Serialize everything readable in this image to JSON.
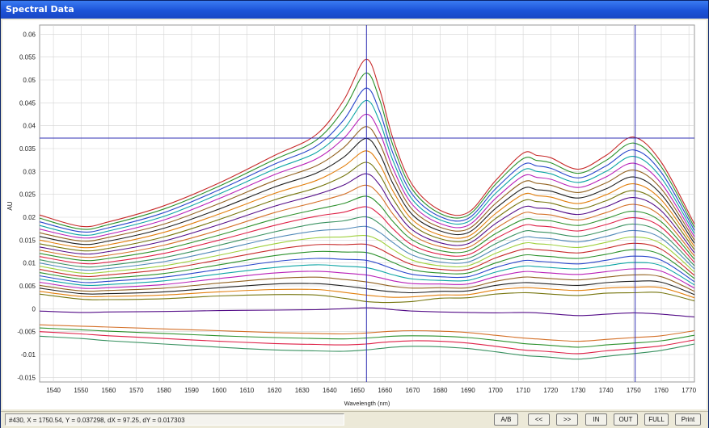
{
  "window": {
    "title": "Spectral Data"
  },
  "status": {
    "readout": "#430,  X = 1750.54,  Y = 0.037298,  dX = 97.25,  dY = 0.017303"
  },
  "buttons": [
    {
      "label": "A/B"
    },
    {
      "label": "<<"
    },
    {
      "label": ">>"
    },
    {
      "label": "IN"
    },
    {
      "label": "OUT"
    },
    {
      "label": "FULL"
    },
    {
      "label": "Print"
    }
  ],
  "chart_data": {
    "type": "line",
    "title": "",
    "xlabel": "Wavelength (nm)",
    "ylabel": "AU",
    "xlim": [
      1535,
      1772
    ],
    "ylim": [
      -0.016,
      0.062
    ],
    "x_ticks": [
      1540,
      1550,
      1560,
      1570,
      1580,
      1590,
      1600,
      1610,
      1620,
      1630,
      1640,
      1650,
      1660,
      1670,
      1680,
      1690,
      1700,
      1710,
      1720,
      1730,
      1740,
      1750,
      1760,
      1770
    ],
    "y_ticks": [
      -0.015,
      -0.01,
      -0.005,
      0,
      0.005,
      0.01,
      0.015,
      0.02,
      0.025,
      0.03,
      0.035,
      0.04,
      0.045,
      0.05,
      0.055,
      0.06
    ],
    "y_tick_labels": [
      "-0.015",
      "-0.01",
      "-0.005",
      "0",
      "0.005",
      "0.01",
      "0.015",
      "0.02",
      "0.025",
      "0.03",
      "0.035",
      "0.04",
      "0.045",
      "0.05",
      "0.055",
      "0.06"
    ],
    "grid": true,
    "cursors": {
      "vertical": [
        1653.3,
        1750.54
      ],
      "horizontal": 0.037298
    },
    "profile_x": [
      1535,
      1550,
      1560,
      1580,
      1600,
      1620,
      1635,
      1645,
      1653,
      1658,
      1663,
      1670,
      1680,
      1690,
      1700,
      1710,
      1715,
      1720,
      1730,
      1740,
      1750,
      1760,
      1772
    ],
    "series": [
      {
        "values": [
          0.0205,
          0.018,
          0.019,
          0.0225,
          0.0275,
          0.0335,
          0.038,
          0.0455,
          0.0545,
          0.048,
          0.037,
          0.027,
          0.0215,
          0.021,
          0.028,
          0.034,
          0.0335,
          0.033,
          0.0305,
          0.0335,
          0.0375,
          0.032,
          0.0185
        ]
      },
      {
        "values": [
          0.0198,
          0.0174,
          0.0184,
          0.0218,
          0.0268,
          0.0326,
          0.0368,
          0.0435,
          0.0515,
          0.0458,
          0.0355,
          0.026,
          0.0208,
          0.0204,
          0.0272,
          0.0328,
          0.0324,
          0.0319,
          0.0296,
          0.0324,
          0.0362,
          0.031,
          0.0178
        ]
      },
      {
        "values": [
          0.019,
          0.0168,
          0.0177,
          0.021,
          0.026,
          0.0316,
          0.0355,
          0.0412,
          0.0482,
          0.0432,
          0.0338,
          0.0249,
          0.0201,
          0.0197,
          0.0262,
          0.0315,
          0.0312,
          0.0307,
          0.0286,
          0.0312,
          0.0347,
          0.0298,
          0.0171
        ]
      },
      {
        "values": [
          0.0182,
          0.0161,
          0.017,
          0.0202,
          0.0251,
          0.0305,
          0.0341,
          0.0392,
          0.0455,
          0.041,
          0.0322,
          0.0238,
          0.0194,
          0.019,
          0.0252,
          0.0303,
          0.03,
          0.0295,
          0.0276,
          0.03,
          0.0333,
          0.0286,
          0.0164
        ]
      },
      {
        "values": [
          0.0174,
          0.0155,
          0.0163,
          0.0194,
          0.0241,
          0.0293,
          0.0327,
          0.0372,
          0.0425,
          0.0386,
          0.0305,
          0.0227,
          0.0186,
          0.0182,
          0.0241,
          0.029,
          0.0287,
          0.0283,
          0.0265,
          0.0288,
          0.0318,
          0.0274,
          0.0157
        ]
      },
      {
        "values": [
          0.0166,
          0.0148,
          0.0156,
          0.0185,
          0.023,
          0.028,
          0.0312,
          0.0352,
          0.0398,
          0.0362,
          0.0289,
          0.0216,
          0.0178,
          0.0174,
          0.023,
          0.0277,
          0.0274,
          0.027,
          0.0254,
          0.0275,
          0.0303,
          0.0262,
          0.015
        ]
      },
      {
        "values": [
          0.0158,
          0.0141,
          0.0148,
          0.0176,
          0.0218,
          0.0266,
          0.0296,
          0.0331,
          0.0372,
          0.0339,
          0.0272,
          0.0205,
          0.017,
          0.0166,
          0.0219,
          0.0263,
          0.026,
          0.0257,
          0.0242,
          0.0262,
          0.0288,
          0.025,
          0.0143
        ]
      },
      {
        "values": [
          0.015,
          0.0134,
          0.014,
          0.0167,
          0.0207,
          0.0252,
          0.028,
          0.0311,
          0.0345,
          0.0316,
          0.0256,
          0.0194,
          0.0161,
          0.0158,
          0.0208,
          0.025,
          0.0247,
          0.0244,
          0.023,
          0.0249,
          0.0273,
          0.0238,
          0.0136
        ]
      },
      {
        "values": [
          0.0142,
          0.0127,
          0.0132,
          0.0157,
          0.0195,
          0.0238,
          0.0264,
          0.029,
          0.032,
          0.0293,
          0.0239,
          0.0183,
          0.0153,
          0.015,
          0.0197,
          0.0236,
          0.0234,
          0.0231,
          0.0218,
          0.0236,
          0.0258,
          0.0226,
          0.0129
        ]
      },
      {
        "values": [
          0.0135,
          0.012,
          0.0125,
          0.0148,
          0.0184,
          0.0224,
          0.0249,
          0.027,
          0.0295,
          0.0271,
          0.0222,
          0.0172,
          0.0144,
          0.0142,
          0.0186,
          0.0222,
          0.022,
          0.0218,
          0.0206,
          0.0223,
          0.0243,
          0.0214,
          0.0122
        ]
      },
      {
        "values": [
          0.0128,
          0.0113,
          0.0117,
          0.0139,
          0.0172,
          0.021,
          0.0233,
          0.025,
          0.027,
          0.0249,
          0.0206,
          0.0161,
          0.0136,
          0.0134,
          0.0175,
          0.0209,
          0.0207,
          0.0205,
          0.0194,
          0.021,
          0.0228,
          0.0202,
          0.0115
        ]
      },
      {
        "values": [
          0.0121,
          0.0106,
          0.011,
          0.013,
          0.0161,
          0.0196,
          0.0217,
          0.023,
          0.0246,
          0.0227,
          0.019,
          0.015,
          0.0127,
          0.0126,
          0.0164,
          0.0195,
          0.0194,
          0.0192,
          0.0182,
          0.0197,
          0.0213,
          0.019,
          0.0108
        ]
      },
      {
        "values": [
          0.0114,
          0.0099,
          0.0102,
          0.0121,
          0.015,
          0.0182,
          0.0202,
          0.0211,
          0.0223,
          0.0206,
          0.0174,
          0.0139,
          0.0119,
          0.0118,
          0.0153,
          0.0182,
          0.0181,
          0.0179,
          0.017,
          0.0184,
          0.0199,
          0.0178,
          0.0101
        ]
      },
      {
        "values": [
          0.0107,
          0.0092,
          0.0095,
          0.0112,
          0.0139,
          0.0168,
          0.0186,
          0.0192,
          0.0201,
          0.0186,
          0.0159,
          0.0128,
          0.011,
          0.011,
          0.0142,
          0.0169,
          0.0168,
          0.0166,
          0.0158,
          0.0171,
          0.0185,
          0.0166,
          0.0094
        ]
      },
      {
        "values": [
          0.01,
          0.0085,
          0.0088,
          0.0103,
          0.0128,
          0.0155,
          0.017,
          0.0174,
          0.018,
          0.0167,
          0.0144,
          0.0117,
          0.0102,
          0.0102,
          0.0131,
          0.0156,
          0.0155,
          0.0153,
          0.0146,
          0.0158,
          0.0171,
          0.0154,
          0.0087
        ]
      },
      {
        "values": [
          0.0093,
          0.0078,
          0.0081,
          0.0094,
          0.0117,
          0.0142,
          0.0155,
          0.0157,
          0.016,
          0.0149,
          0.0129,
          0.0106,
          0.0094,
          0.0094,
          0.0121,
          0.0143,
          0.0142,
          0.014,
          0.0134,
          0.0145,
          0.0157,
          0.0142,
          0.008
        ]
      },
      {
        "values": [
          0.0086,
          0.0071,
          0.0074,
          0.0086,
          0.0107,
          0.0129,
          0.014,
          0.014,
          0.0141,
          0.0131,
          0.0115,
          0.0096,
          0.0086,
          0.0086,
          0.0111,
          0.013,
          0.0129,
          0.0127,
          0.0122,
          0.0132,
          0.0143,
          0.013,
          0.0073
        ]
      },
      {
        "values": [
          0.0079,
          0.0065,
          0.0067,
          0.0077,
          0.0096,
          0.0116,
          0.0125,
          0.0124,
          0.0123,
          0.0114,
          0.0101,
          0.0085,
          0.0078,
          0.0078,
          0.01,
          0.0117,
          0.0116,
          0.0114,
          0.011,
          0.0119,
          0.0129,
          0.0118,
          0.0066
        ]
      },
      {
        "values": [
          0.0072,
          0.0058,
          0.006,
          0.0069,
          0.0086,
          0.0103,
          0.011,
          0.0108,
          0.0106,
          0.0098,
          0.0087,
          0.0075,
          0.007,
          0.007,
          0.009,
          0.0105,
          0.0104,
          0.0102,
          0.0098,
          0.0106,
          0.0115,
          0.0106,
          0.0059
        ]
      },
      {
        "values": [
          0.0065,
          0.0052,
          0.0053,
          0.0061,
          0.0076,
          0.009,
          0.0096,
          0.0093,
          0.009,
          0.0083,
          0.0074,
          0.0065,
          0.0062,
          0.0062,
          0.008,
          0.0093,
          0.0092,
          0.009,
          0.0087,
          0.0094,
          0.0101,
          0.0094,
          0.0052
        ]
      },
      {
        "values": [
          0.0058,
          0.0045,
          0.0046,
          0.0053,
          0.0066,
          0.0078,
          0.0082,
          0.0078,
          0.0074,
          0.0068,
          0.0061,
          0.0055,
          0.0054,
          0.0054,
          0.007,
          0.0081,
          0.008,
          0.0078,
          0.0075,
          0.0081,
          0.0087,
          0.0082,
          0.0045
        ]
      },
      {
        "values": [
          0.0051,
          0.0039,
          0.004,
          0.0045,
          0.0056,
          0.0066,
          0.0069,
          0.0064,
          0.0059,
          0.0054,
          0.0049,
          0.0045,
          0.0046,
          0.0046,
          0.006,
          0.0069,
          0.0068,
          0.0066,
          0.0063,
          0.0069,
          0.0074,
          0.007,
          0.0038
        ]
      },
      {
        "values": [
          0.0045,
          0.0033,
          0.0033,
          0.0037,
          0.0046,
          0.0054,
          0.0055,
          0.005,
          0.0044,
          0.004,
          0.0037,
          0.0035,
          0.0038,
          0.0039,
          0.0051,
          0.0057,
          0.0056,
          0.0054,
          0.0051,
          0.0057,
          0.006,
          0.0058,
          0.0031
        ]
      },
      {
        "values": [
          0.0038,
          0.0027,
          0.0027,
          0.003,
          0.0037,
          0.0042,
          0.0042,
          0.0036,
          0.003,
          0.0027,
          0.0025,
          0.0026,
          0.003,
          0.0031,
          0.0041,
          0.0046,
          0.0045,
          0.0043,
          0.004,
          0.0045,
          0.0047,
          0.0046,
          0.0024
        ]
      },
      {
        "values": [
          0.0032,
          0.0021,
          0.002,
          0.0022,
          0.0028,
          0.0031,
          0.003,
          0.0023,
          0.0016,
          0.0014,
          0.0014,
          0.0016,
          0.0023,
          0.0024,
          0.0032,
          0.0035,
          0.0034,
          0.0032,
          0.0029,
          0.0034,
          0.0035,
          0.0035,
          0.0017
        ]
      },
      {
        "values": [
          -0.0005,
          -0.0008,
          -0.0007,
          -0.0006,
          -0.0004,
          -0.0003,
          -0.0002,
          0.0,
          0.0002,
          0.0001,
          -0.0002,
          -0.0005,
          -0.0007,
          -0.0008,
          -0.0009,
          -0.0008,
          -0.0009,
          -0.0011,
          -0.0015,
          -0.0012,
          -0.0009,
          -0.0012,
          -0.0018
        ]
      },
      {
        "values": [
          -0.0035,
          -0.0038,
          -0.004,
          -0.0044,
          -0.0048,
          -0.0052,
          -0.0054,
          -0.0055,
          -0.0053,
          -0.0051,
          -0.0049,
          -0.0048,
          -0.0049,
          -0.0052,
          -0.0058,
          -0.0064,
          -0.0066,
          -0.0068,
          -0.0071,
          -0.0067,
          -0.0063,
          -0.0059,
          -0.0048
        ]
      },
      {
        "values": [
          -0.0042,
          -0.0046,
          -0.0049,
          -0.0054,
          -0.0059,
          -0.0063,
          -0.0065,
          -0.0066,
          -0.0064,
          -0.0062,
          -0.006,
          -0.0059,
          -0.006,
          -0.0063,
          -0.0069,
          -0.0076,
          -0.0078,
          -0.008,
          -0.0084,
          -0.0079,
          -0.0075,
          -0.007,
          -0.0058
        ]
      },
      {
        "values": [
          -0.005,
          -0.0055,
          -0.0059,
          -0.0065,
          -0.0071,
          -0.0076,
          -0.0078,
          -0.0079,
          -0.0077,
          -0.0074,
          -0.0072,
          -0.007,
          -0.0071,
          -0.0075,
          -0.0082,
          -0.009,
          -0.0092,
          -0.0094,
          -0.0098,
          -0.0092,
          -0.0087,
          -0.0081,
          -0.0068
        ]
      },
      {
        "values": [
          -0.006,
          -0.0065,
          -0.007,
          -0.0077,
          -0.0084,
          -0.009,
          -0.0092,
          -0.0093,
          -0.009,
          -0.0087,
          -0.0084,
          -0.0082,
          -0.0083,
          -0.0087,
          -0.0094,
          -0.0102,
          -0.0104,
          -0.0106,
          -0.011,
          -0.0104,
          -0.0098,
          -0.0091,
          -0.0077
        ]
      }
    ]
  },
  "colors": {
    "title_bar": "#1c53d8",
    "cursor": "#3232b4",
    "grid": "#d4d4d4",
    "palette": [
      "#c41e1e",
      "#1f8a1f",
      "#1e3cc8",
      "#00a0a0",
      "#b414b4",
      "#8c5a14",
      "#141414",
      "#e07800",
      "#6e6e00",
      "#4b0082",
      "#d2691e",
      "#228b22",
      "#dc143c",
      "#2e8b57",
      "#4682b4",
      "#9acd32"
    ]
  }
}
